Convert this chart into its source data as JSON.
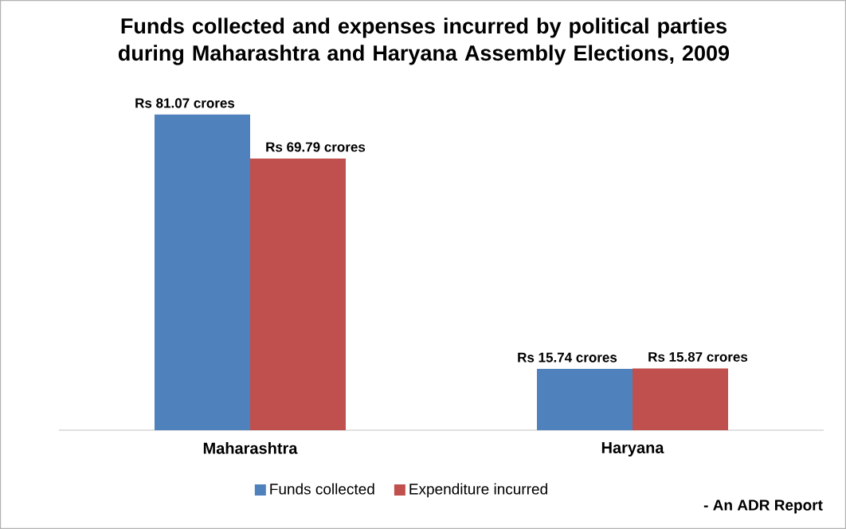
{
  "chart_data": {
    "type": "bar",
    "title": "Funds collected and expenses incurred by political parties during Maharashtra and Haryana Assembly Elections, 2009",
    "categories": [
      "Maharashtra",
      "Haryana"
    ],
    "series": [
      {
        "name": "Funds collected",
        "color": "#4f81bd",
        "values": [
          81.07,
          15.74
        ],
        "value_labels": [
          "Rs 81.07 crores",
          "Rs 15.74 crores"
        ]
      },
      {
        "name": "Expenditure incurred",
        "color": "#c0504d",
        "values": [
          69.79,
          15.87
        ],
        "value_labels": [
          "Rs 69.79 crores",
          "Rs 15.87 crores"
        ]
      }
    ],
    "legend": "bottom",
    "annotations": [
      "- An ADR Report"
    ]
  }
}
